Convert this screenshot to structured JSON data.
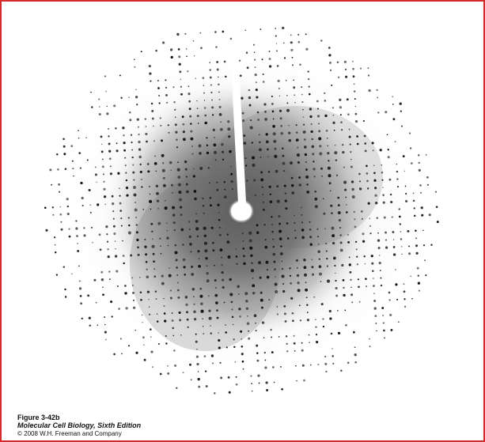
{
  "caption": {
    "figure": "Figure 3-42b",
    "book": "Molecular Cell Biology, Sixth Edition",
    "copyright": "© 2008 W.H. Freeman and Company"
  },
  "colors": {
    "border": "#d42a2a",
    "background": "#ffffff",
    "haze": "#5a5a5a",
    "spot": "#111111"
  }
}
